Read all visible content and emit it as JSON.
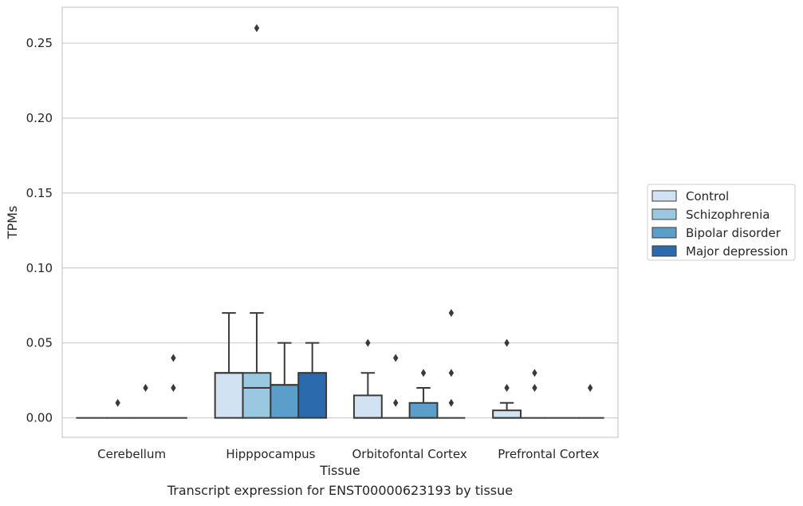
{
  "chart_data": {
    "type": "box",
    "title": "",
    "xlabel": "Tissue",
    "ylabel": "TPMs",
    "caption": "Transcript expression for ENST00000623193 by tissue",
    "ylim": [
      -0.013,
      0.274
    ],
    "yticks": [
      "0.00",
      "0.05",
      "0.10",
      "0.15",
      "0.20",
      "0.25"
    ],
    "ytick_values": [
      0,
      0.05,
      0.1,
      0.15,
      0.2,
      0.25
    ],
    "grid": "horizontal",
    "legend_position": "right",
    "categories": [
      "Cerebellum",
      "Hipppocampus",
      "Orbitofontal Cortex",
      "Prefrontal Cortex"
    ],
    "series": [
      {
        "name": "Control",
        "color": "#d1e2f2",
        "boxes": [
          {
            "q1": 0,
            "median": 0,
            "q3": 0,
            "whisker_low": 0,
            "whisker_high": 0,
            "outliers": []
          },
          {
            "q1": 0,
            "median": 0.03,
            "q3": 0.03,
            "whisker_low": 0,
            "whisker_high": 0.07,
            "outliers": []
          },
          {
            "q1": 0,
            "median": 0,
            "q3": 0.015,
            "whisker_low": 0,
            "whisker_high": 0.03,
            "outliers": [
              0.05
            ]
          },
          {
            "q1": 0,
            "median": 0,
            "q3": 0.005,
            "whisker_low": 0,
            "whisker_high": 0.01,
            "outliers": [
              0.02,
              0.05
            ]
          }
        ]
      },
      {
        "name": "Schizophrenia",
        "color": "#9ac8e0",
        "boxes": [
          {
            "q1": 0,
            "median": 0,
            "q3": 0,
            "whisker_low": 0,
            "whisker_high": 0,
            "outliers": [
              0.01
            ]
          },
          {
            "q1": 0,
            "median": 0.02,
            "q3": 0.03,
            "whisker_low": 0,
            "whisker_high": 0.07,
            "outliers": [
              0.26
            ]
          },
          {
            "q1": 0,
            "median": 0,
            "q3": 0,
            "whisker_low": 0,
            "whisker_high": 0,
            "outliers": [
              0.01,
              0.04
            ]
          },
          {
            "q1": 0,
            "median": 0,
            "q3": 0,
            "whisker_low": 0,
            "whisker_high": 0,
            "outliers": [
              0.02,
              0.03
            ]
          }
        ]
      },
      {
        "name": "Bipolar disorder",
        "color": "#5a9ec9",
        "boxes": [
          {
            "q1": 0,
            "median": 0,
            "q3": 0,
            "whisker_low": 0,
            "whisker_high": 0,
            "outliers": [
              0.02
            ]
          },
          {
            "q1": 0,
            "median": 0.022,
            "q3": 0.022,
            "whisker_low": 0,
            "whisker_high": 0.05,
            "outliers": []
          },
          {
            "q1": 0,
            "median": 0,
            "q3": 0.01,
            "whisker_low": 0,
            "whisker_high": 0.02,
            "outliers": [
              0.03
            ]
          },
          {
            "q1": 0,
            "median": 0,
            "q3": 0,
            "whisker_low": 0,
            "whisker_high": 0,
            "outliers": []
          }
        ]
      },
      {
        "name": "Major depression",
        "color": "#2a6aad",
        "boxes": [
          {
            "q1": 0,
            "median": 0,
            "q3": 0,
            "whisker_low": 0,
            "whisker_high": 0,
            "outliers": [
              0.02,
              0.04
            ]
          },
          {
            "q1": 0,
            "median": 0.03,
            "q3": 0.03,
            "whisker_low": 0,
            "whisker_high": 0.05,
            "outliers": []
          },
          {
            "q1": 0,
            "median": 0,
            "q3": 0,
            "whisker_low": 0,
            "whisker_high": 0,
            "outliers": [
              0.01,
              0.03,
              0.07
            ]
          },
          {
            "q1": 0,
            "median": 0,
            "q3": 0,
            "whisker_low": 0,
            "whisker_high": 0,
            "outliers": [
              0.02
            ]
          }
        ]
      }
    ]
  }
}
